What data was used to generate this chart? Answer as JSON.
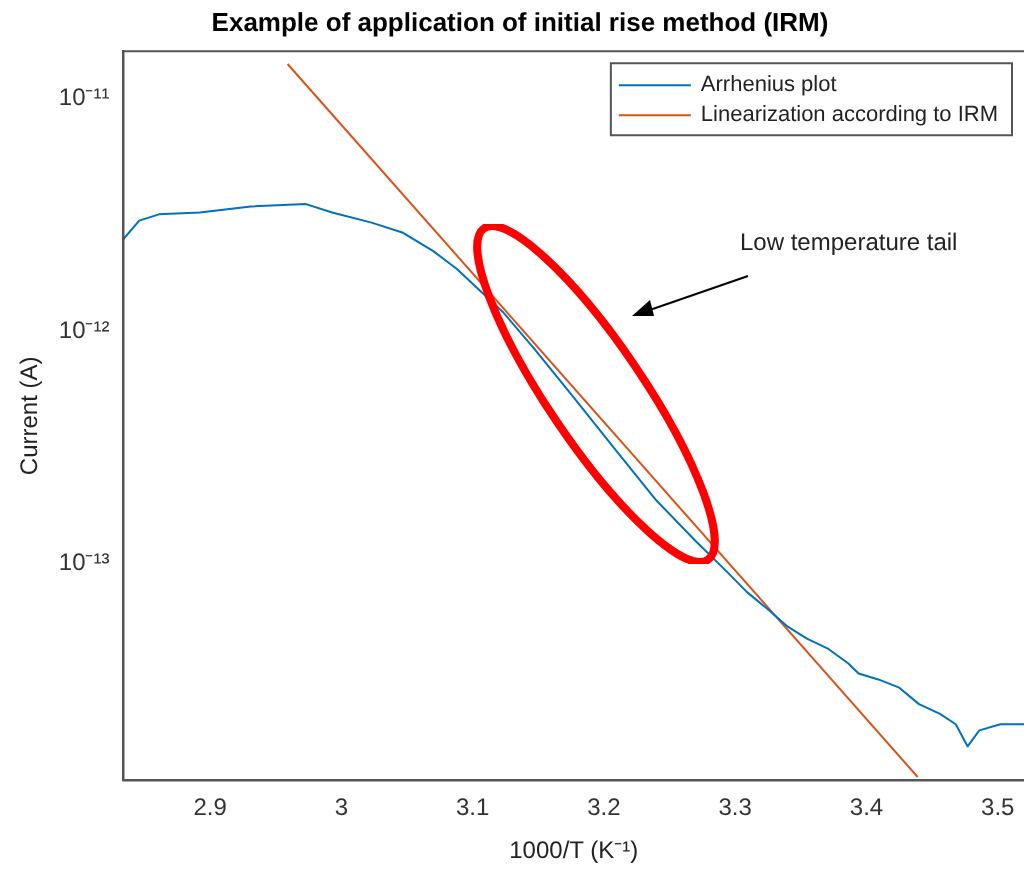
{
  "chart_data": {
    "type": "line",
    "title": "Example of application of initial rise method (IRM)",
    "xlabel": "1000/T (K⁻¹)",
    "ylabel": "Current (A)",
    "log": "y",
    "xlim": [
      2.834,
      3.52
    ],
    "xticks": [
      2.9,
      3,
      3.1,
      3.2,
      3.3,
      3.4,
      3.5
    ],
    "ylim": [
      1.17e-14,
      1.6e-11
    ],
    "yticks": [
      {
        "value": 1e-13,
        "label": "10⁻¹³"
      },
      {
        "value": 1e-12,
        "label": "10⁻¹²"
      },
      {
        "value": 1e-11,
        "label": "10⁻¹¹"
      }
    ],
    "legend": "top right",
    "annotations": [
      "Low temperature tail"
    ],
    "series": [
      {
        "name": "Arrhenius plot",
        "color": "#0072bd",
        "x": [
          2.834,
          2.846,
          2.861,
          2.892,
          2.931,
          2.973,
          2.993,
          3.023,
          3.047,
          3.07,
          3.088,
          3.103,
          3.123,
          3.147,
          3.178,
          3.209,
          3.24,
          3.27,
          3.294,
          3.309,
          3.324,
          3.34,
          3.355,
          3.371,
          3.386,
          3.394,
          3.409,
          3.425,
          3.44,
          3.456,
          3.468,
          3.477,
          3.486,
          3.502,
          3.52
        ],
        "values": [
          2.49e-12,
          2.99e-12,
          3.18e-12,
          3.24e-12,
          3.44e-12,
          3.52e-12,
          3.24e-12,
          2.93e-12,
          2.65e-12,
          2.21e-12,
          1.85e-12,
          1.54e-12,
          1.21e-12,
          8.4e-13,
          5.1e-13,
          3.08e-13,
          1.87e-13,
          1.25e-13,
          9.2e-14,
          7.55e-14,
          6.43e-14,
          5.36e-14,
          4.75e-14,
          4.3e-14,
          3.73e-14,
          3.37e-14,
          3.18e-14,
          2.93e-14,
          2.49e-14,
          2.26e-14,
          2.04e-14,
          1.64e-14,
          1.92e-14,
          2.04e-14,
          2.04e-14
        ]
      },
      {
        "name": "Linearization according to IRM",
        "color": "#d95319",
        "x": [
          2.959,
          3.439
        ],
        "values": [
          1.41e-11,
          1.21e-14
        ]
      }
    ]
  }
}
